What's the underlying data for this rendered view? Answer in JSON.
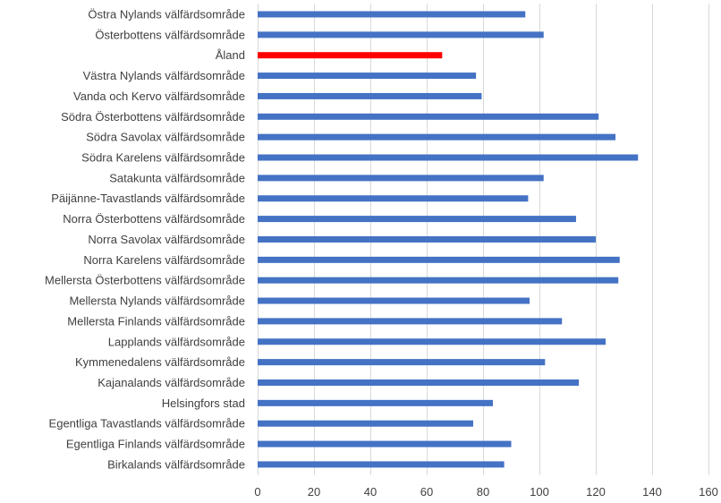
{
  "chart_data": {
    "type": "bar",
    "orientation": "horizontal",
    "categories": [
      "Östra Nylands välfärdsområde",
      "Österbottens välfärdsområde",
      "Åland",
      "Västra Nylands välfärdsområde",
      "Vanda och Kervo välfärdsområde",
      "Södra Österbottens välfärdsområde",
      "Södra Savolax välfärdsområde",
      "Södra Karelens välfärdsområde",
      "Satakunta välfärdsområde",
      "Päijänne-Tavastlands välfärdsområde",
      "Norra Österbottens välfärdsområde",
      "Norra Savolax välfärdsområde",
      "Norra Karelens välfärdsområde",
      "Mellersta Österbottens välfärdsområde",
      "Mellersta Nylands välfärdsområde",
      "Mellersta Finlands välfärdsområde",
      "Lapplands välfärdsområde",
      "Kymmenedalens välfärdsområde",
      "Kajanalands välfärdsområde",
      "Helsingfors stad",
      "Egentliga Tavastlands välfärdsområde",
      "Egentliga Finlands välfärdsområde",
      "Birkalands välfärdsområde"
    ],
    "values": [
      95,
      101.5,
      65.5,
      77.5,
      79.5,
      121,
      127,
      135,
      101.5,
      96,
      113,
      120,
      128.5,
      128,
      96.5,
      108,
      123.5,
      102,
      114,
      83.5,
      76.5,
      90,
      87.5
    ],
    "highlight_index": 2,
    "colors": {
      "default": "#4472c4",
      "highlight": "#ff0000"
    },
    "xlim": [
      0,
      160
    ],
    "xticks": [
      "0",
      "20",
      "40",
      "60",
      "80",
      "100",
      "120",
      "140",
      "160"
    ],
    "grid": "vertical",
    "title": "",
    "xlabel": "",
    "ylabel": ""
  }
}
